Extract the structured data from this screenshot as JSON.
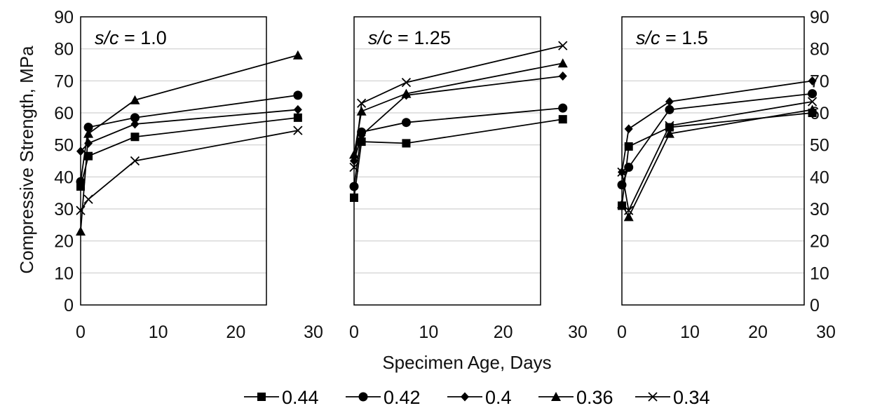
{
  "chart_data": {
    "type": "line",
    "ylabel": "Compressive Strength, MPa",
    "xlabel": "Specimen Age, Days",
    "xlim": [
      0,
      30
    ],
    "ylim": [
      0,
      90
    ],
    "x_ticks": [
      "0",
      "10",
      "20",
      "30"
    ],
    "y_ticks": [
      "0",
      "10",
      "20",
      "30",
      "40",
      "50",
      "60",
      "70",
      "80",
      "90"
    ],
    "grid": "horizontal",
    "legend_position": "bottom",
    "legend": [
      {
        "name": "0.44",
        "marker": "square"
      },
      {
        "name": "0.42",
        "marker": "circle"
      },
      {
        "name": "0.4",
        "marker": "diamond"
      },
      {
        "name": "0.36",
        "marker": "triangle"
      },
      {
        "name": "0.34",
        "marker": "x"
      }
    ],
    "panels": [
      {
        "label_italic": "s/c",
        "label_rest": " = 1.0",
        "series": [
          {
            "name": "0.44",
            "x": [
              0,
              1,
              7,
              28
            ],
            "y": [
              37,
              46.5,
              52.5,
              58.5
            ]
          },
          {
            "name": "0.42",
            "x": [
              0,
              1,
              7,
              28
            ],
            "y": [
              38.5,
              55.5,
              58.5,
              65.5
            ]
          },
          {
            "name": "0.4",
            "x": [
              0,
              1,
              7,
              28
            ],
            "y": [
              48,
              50.5,
              56.5,
              61
            ]
          },
          {
            "name": "0.36",
            "x": [
              0,
              1,
              7,
              28
            ],
            "y": [
              23,
              53.5,
              64,
              78
            ]
          },
          {
            "name": "0.34",
            "x": [
              0,
              1,
              7,
              28
            ],
            "y": [
              29.5,
              33,
              45,
              54.5
            ]
          }
        ]
      },
      {
        "label_italic": "s/c",
        "label_rest": " = 1.25",
        "series": [
          {
            "name": "0.44",
            "x": [
              0,
              1,
              7,
              28
            ],
            "y": [
              33.5,
              51,
              50.5,
              58
            ]
          },
          {
            "name": "0.42",
            "x": [
              0,
              1,
              7,
              28
            ],
            "y": [
              37,
              54,
              57,
              61.5
            ]
          },
          {
            "name": "0.4",
            "x": [
              0,
              1,
              7,
              28
            ],
            "y": [
              45,
              53,
              65.5,
              71.5
            ]
          },
          {
            "name": "0.36",
            "x": [
              0,
              1,
              7,
              28
            ],
            "y": [
              47,
              60.5,
              66,
              75.5
            ]
          },
          {
            "name": "0.34",
            "x": [
              0,
              1,
              7,
              28
            ],
            "y": [
              43,
              63,
              69.5,
              81
            ]
          }
        ]
      },
      {
        "label_italic": "s/c",
        "label_rest": " = 1.5",
        "series": [
          {
            "name": "0.44",
            "x": [
              0,
              1,
              7,
              28
            ],
            "y": [
              31,
              49.5,
              55.5,
              60
            ]
          },
          {
            "name": "0.42",
            "x": [
              0,
              1,
              7,
              28
            ],
            "y": [
              37.5,
              43,
              61,
              66
            ]
          },
          {
            "name": "0.4",
            "x": [
              0,
              1,
              7,
              28
            ],
            "y": [
              41.5,
              55,
              63.5,
              70
            ]
          },
          {
            "name": "0.36",
            "x": [
              0,
              1,
              7,
              28
            ],
            "y": [
              31.5,
              27.5,
              53.5,
              61
            ]
          },
          {
            "name": "0.34",
            "x": [
              0,
              1,
              7,
              28
            ],
            "y": [
              41.5,
              29.5,
              56,
              63.5
            ]
          }
        ]
      }
    ]
  }
}
